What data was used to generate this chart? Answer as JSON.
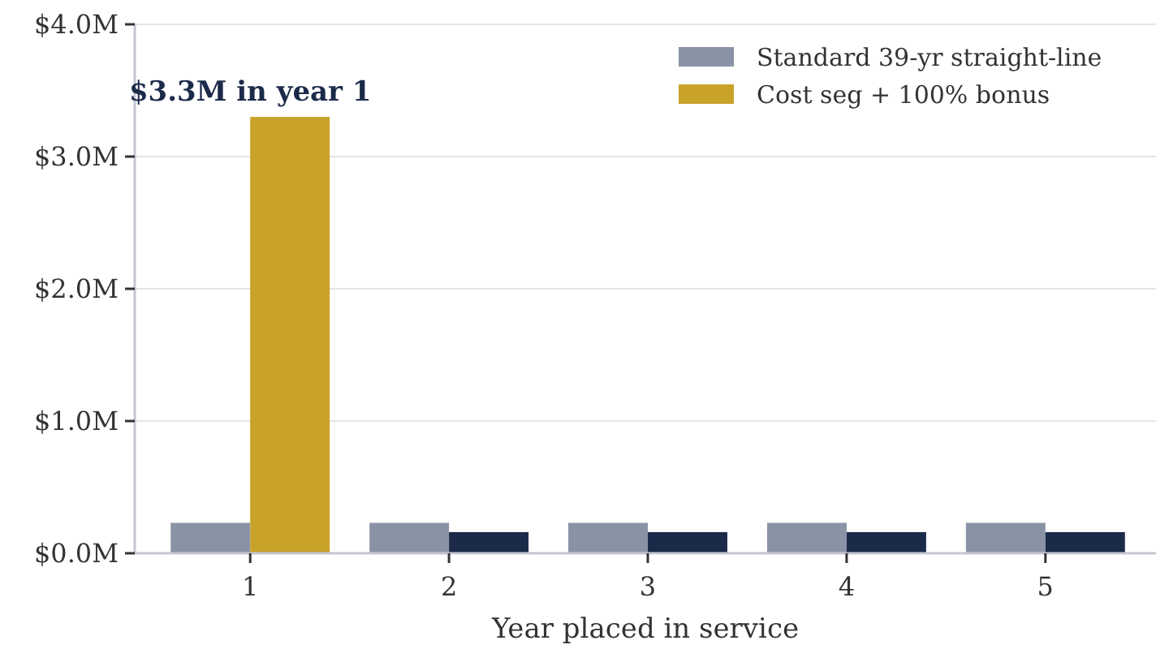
{
  "chart_data": {
    "type": "bar",
    "xlabel": "Year placed in service",
    "categories": [
      "1",
      "2",
      "3",
      "4",
      "5"
    ],
    "series": [
      {
        "name": "Standard 39-yr straight-line",
        "color": "#8a93a6",
        "values": [
          0.23,
          0.23,
          0.23,
          0.23,
          0.23
        ]
      },
      {
        "name": "Cost seg + 100% bonus",
        "color": "#c9a22a",
        "colors": [
          "#c9a22a",
          "#1c2a4a",
          "#1c2a4a",
          "#1c2a4a",
          "#1c2a4a"
        ],
        "values": [
          3.3,
          0.16,
          0.16,
          0.16,
          0.16
        ]
      }
    ],
    "ylim": [
      0,
      4
    ],
    "yticks": [
      {
        "value": 0,
        "label": "$0.0M"
      },
      {
        "value": 1,
        "label": "$1.0M"
      },
      {
        "value": 2,
        "label": "$2.0M"
      },
      {
        "value": 3,
        "label": "$3.0M"
      },
      {
        "value": 4,
        "label": "$4.0M"
      }
    ],
    "grid": "y",
    "legend": "top right",
    "annotations": [
      {
        "text": "$3.3M in year 1",
        "x": "1",
        "y": 3.3
      }
    ]
  }
}
